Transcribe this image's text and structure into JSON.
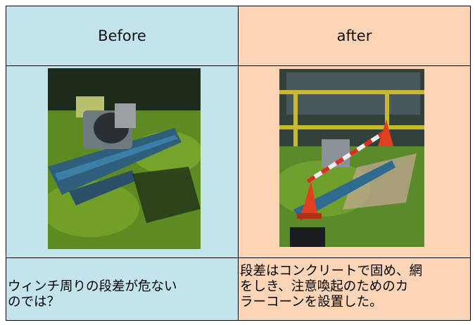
{
  "table": {
    "header": [
      "Before",
      "after"
    ],
    "notes": [
      [
        "ウィンチ周りの段差が危ない",
        "のでは？"
      ],
      [
        "段差はコンクリートで固め、網",
        "をしき、注意喚起のためのカ",
        "ラーコーンを設置した。"
      ]
    ]
  }
}
